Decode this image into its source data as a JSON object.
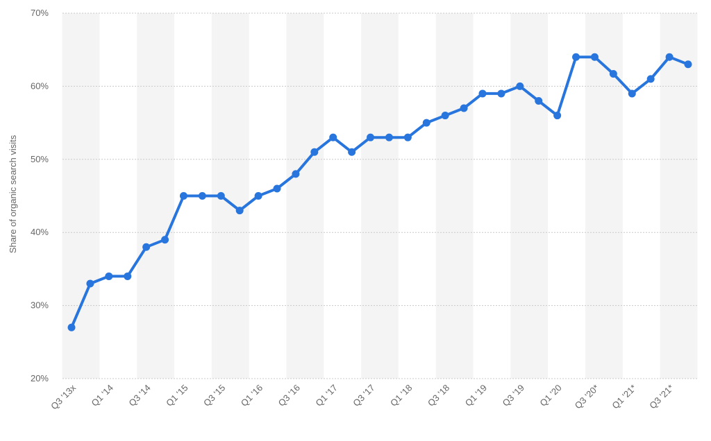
{
  "chart_data": {
    "type": "line",
    "title": "",
    "xlabel": "",
    "ylabel": "Share of organic search visits",
    "ylim": [
      20,
      70
    ],
    "y_ticks": [
      20,
      30,
      40,
      50,
      60,
      70
    ],
    "y_tick_suffix": "%",
    "grid": true,
    "x": [
      "Q3 '13x",
      "Q4 '13",
      "Q1 '14",
      "Q2 '14",
      "Q3 '14",
      "Q4 '14",
      "Q1 '15",
      "Q2 '15",
      "Q3 '15",
      "Q4 '15",
      "Q1 '16",
      "Q2 '16",
      "Q3 '16",
      "Q4 '16",
      "Q1 '17",
      "Q2 '17",
      "Q3 '17",
      "Q4 '17",
      "Q1 '18",
      "Q2 '18",
      "Q3 '18",
      "Q4 '18",
      "Q1 '19",
      "Q2 '19",
      "Q3 '19",
      "Q4 '19",
      "Q1 '20",
      "Q2 '20",
      "Q3 '20*",
      "Q4 '20*",
      "Q1 '21*",
      "Q2 '21*",
      "Q3 '21*",
      "Q4 '21*"
    ],
    "x_tick_labels": [
      "Q3 '13x",
      "",
      "Q1 '14",
      "",
      "Q3 '14",
      "",
      "Q1 '15",
      "",
      "Q3 '15",
      "",
      "Q1 '16",
      "",
      "Q3 '16",
      "",
      "Q1 '17",
      "",
      "Q3 '17",
      "",
      "Q1 '18",
      "",
      "Q3 '18",
      "",
      "Q1 '19",
      "",
      "Q3 '19",
      "",
      "Q1 '20",
      "",
      "Q3 '20*",
      "",
      "Q1 '21*",
      "",
      "Q3 '21*",
      ""
    ],
    "series": [
      {
        "color": "#2876dd",
        "values": [
          27,
          33,
          34,
          34,
          38,
          39,
          45,
          45,
          45,
          43,
          45,
          46,
          48,
          51,
          53,
          51,
          53,
          53,
          53,
          55,
          56,
          57,
          59,
          59,
          60,
          58,
          56,
          64,
          64,
          61.7,
          59,
          61,
          64,
          63
        ]
      }
    ]
  },
  "colors": {
    "band": "#f4f4f4",
    "grid": "#c8c8c8",
    "text": "#666666"
  }
}
